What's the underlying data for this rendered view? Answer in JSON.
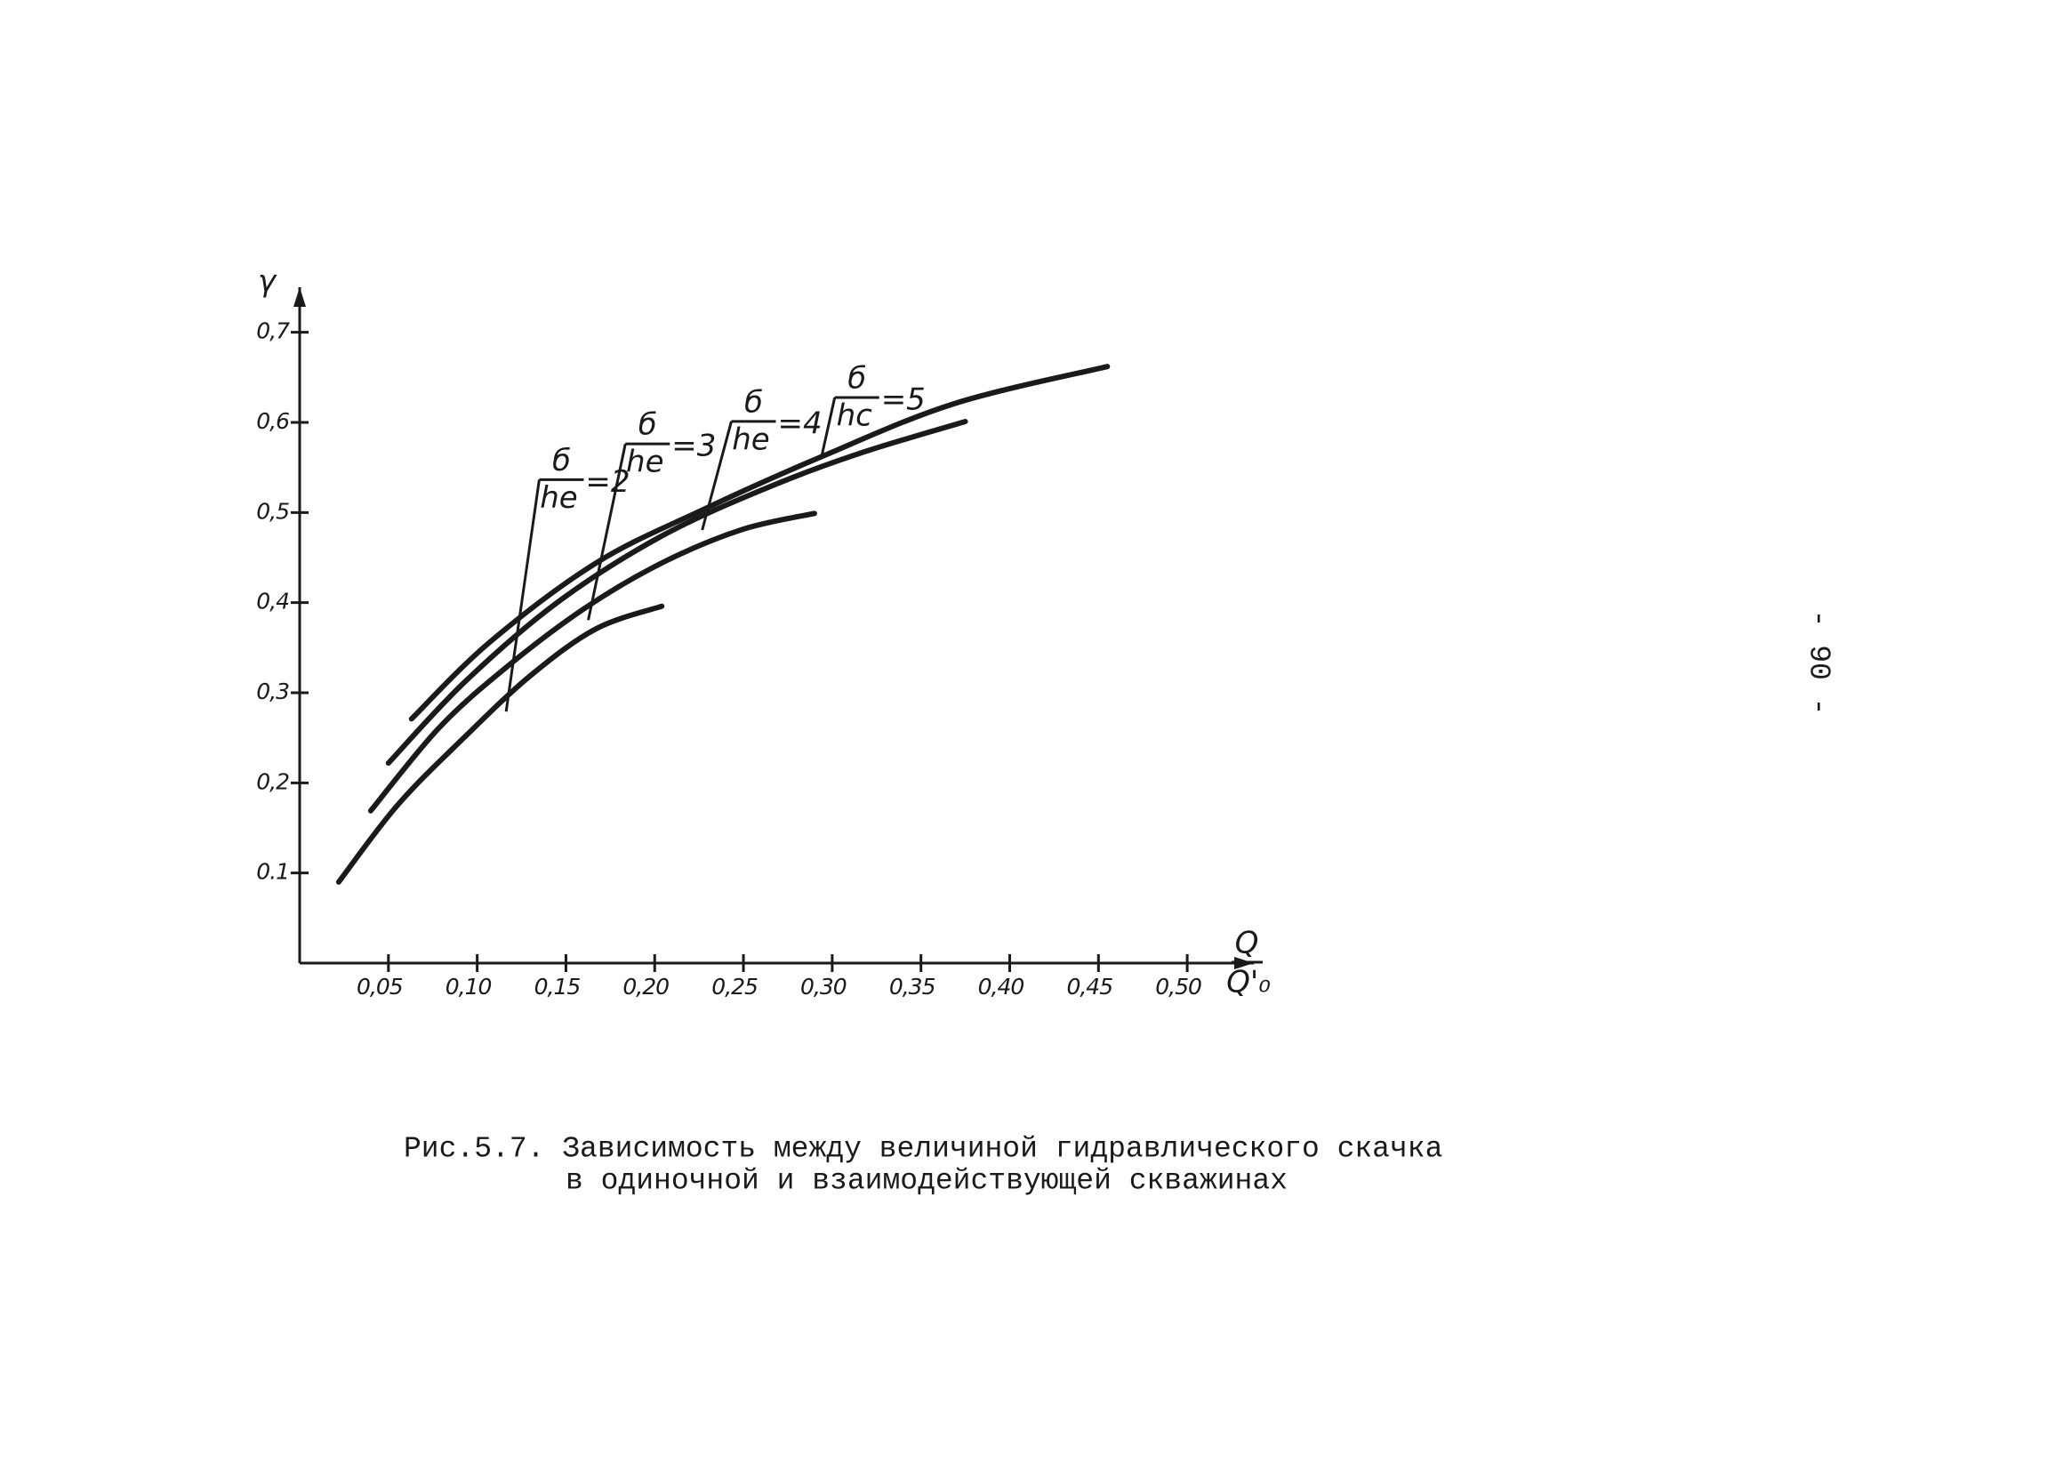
{
  "chart_data": {
    "type": "line",
    "ylabel": "γ",
    "xlabel_numerator": "Q",
    "xlabel_denominator": "Q'₀",
    "xlim": [
      0,
      0.53
    ],
    "ylim": [
      0,
      0.75
    ],
    "xticks": [
      {
        "value": 0.05,
        "label": "0,05"
      },
      {
        "value": 0.1,
        "label": "0,10"
      },
      {
        "value": 0.15,
        "label": "0,15"
      },
      {
        "value": 0.2,
        "label": "0,20"
      },
      {
        "value": 0.25,
        "label": "0,25"
      },
      {
        "value": 0.3,
        "label": "0,30"
      },
      {
        "value": 0.35,
        "label": "0,35"
      },
      {
        "value": 0.4,
        "label": "0,40"
      },
      {
        "value": 0.45,
        "label": "0,45"
      },
      {
        "value": 0.5,
        "label": "0,50"
      }
    ],
    "yticks": [
      {
        "value": 0.1,
        "label": "0.1"
      },
      {
        "value": 0.2,
        "label": "0,2"
      },
      {
        "value": 0.3,
        "label": "0,3"
      },
      {
        "value": 0.4,
        "label": "0,4"
      },
      {
        "value": 0.5,
        "label": "0,5"
      },
      {
        "value": 0.6,
        "label": "0,6"
      },
      {
        "value": 0.7,
        "label": "0,7"
      }
    ],
    "color": "#1a1a1a",
    "series": [
      {
        "x": [
          0.022,
          0.055,
          0.093,
          0.13,
          0.167,
          0.204
        ],
        "values": [
          0.09,
          0.175,
          0.251,
          0.319,
          0.371,
          0.396
        ]
      },
      {
        "x": [
          0.04,
          0.078,
          0.115,
          0.16,
          0.204,
          0.249,
          0.29
        ],
        "values": [
          0.169,
          0.26,
          0.326,
          0.393,
          0.444,
          0.481,
          0.499
        ]
      },
      {
        "x": [
          0.05,
          0.093,
          0.145,
          0.204,
          0.264,
          0.316,
          0.375
        ],
        "values": [
          0.222,
          0.312,
          0.4,
          0.474,
          0.528,
          0.566,
          0.601
        ]
      },
      {
        "x": [
          0.063,
          0.107,
          0.167,
          0.227,
          0.294,
          0.369,
          0.455
        ],
        "values": [
          0.271,
          0.356,
          0.444,
          0.503,
          0.562,
          0.621,
          0.662
        ]
      }
    ],
    "annotations": [
      {
        "numerator": "б",
        "denominator": "hе",
        "text": "=2"
      },
      {
        "numerator": "б",
        "denominator": "hе",
        "text": "=3"
      },
      {
        "numerator": "б",
        "denominator": "hе",
        "text": "=4"
      },
      {
        "numerator": "б",
        "denominator": "hс",
        "text": "=5"
      }
    ],
    "caption": [
      "Рис.5.7. Зависимость между величиной гидравлического скачка",
      "в одиночной и взаимодействующей скважинах"
    ],
    "page_number": "- 90 -"
  }
}
